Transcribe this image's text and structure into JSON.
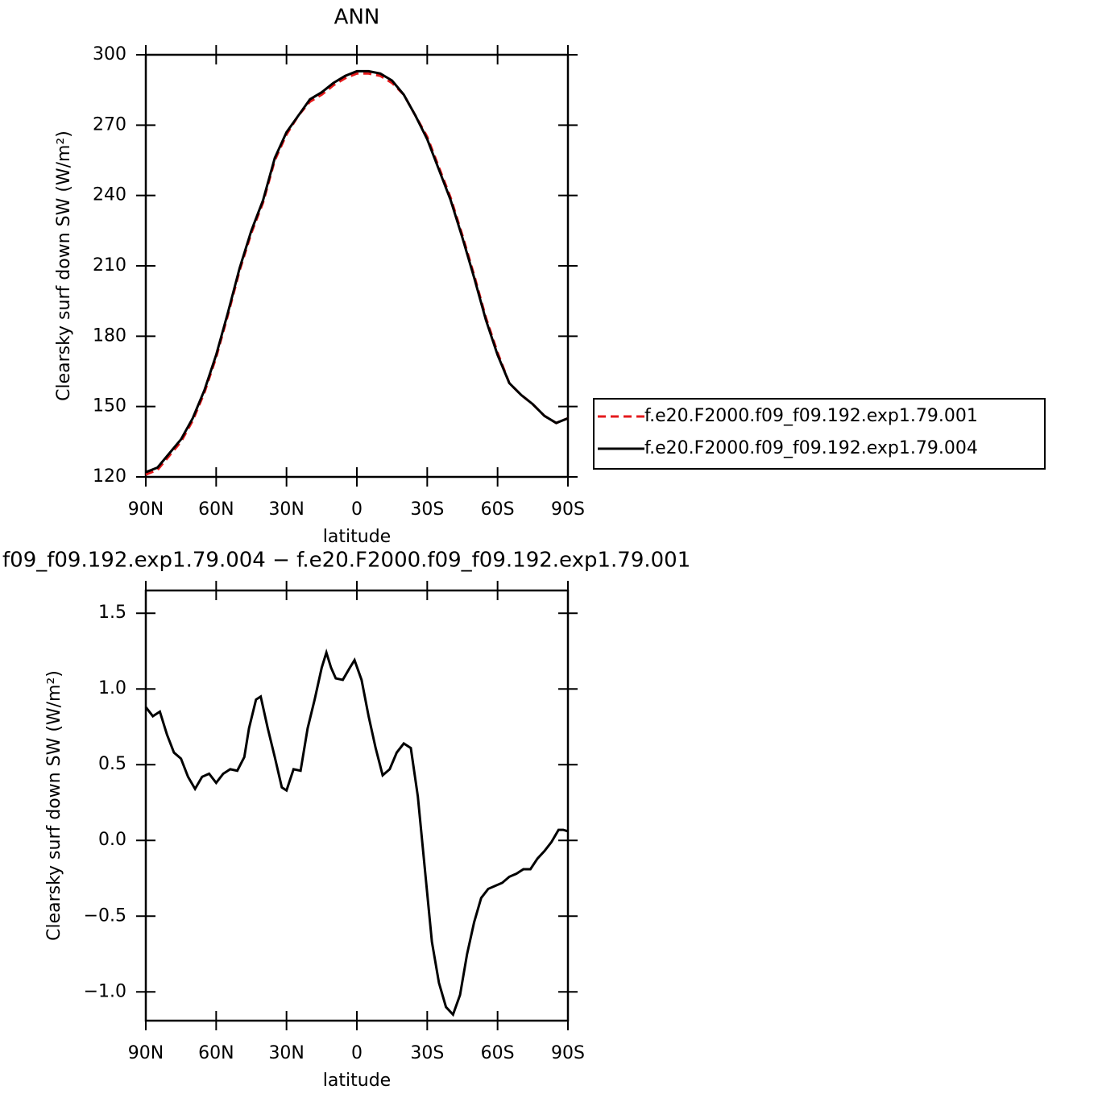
{
  "chart_data": [
    {
      "type": "line",
      "title": "ANN",
      "x_label": "latitude",
      "y_label": "Clearsky surf down SW (W/m²)",
      "x": [
        90,
        85,
        80,
        75,
        70,
        65,
        60,
        55,
        50,
        45,
        40,
        35,
        30,
        25,
        20,
        15,
        10,
        5,
        0,
        -5,
        -10,
        -15,
        -20,
        -25,
        -30,
        -35,
        -40,
        -45,
        -50,
        -55,
        -60,
        -65,
        -70,
        -75,
        -80,
        -85,
        -90
      ],
      "series": [
        {
          "name": "f.e20.F2000.f09_f09.192.exp1.79.001",
          "color": "#e41a1c",
          "linestyle": "dashed",
          "values": [
            121,
            123,
            129,
            135,
            144,
            156,
            171,
            189,
            208,
            224,
            237,
            255,
            266,
            274,
            280,
            283,
            287,
            290,
            292,
            292,
            291,
            288,
            283,
            274,
            265,
            252,
            239,
            223,
            206,
            188,
            173,
            160,
            155,
            151,
            146,
            143,
            145
          ]
        },
        {
          "name": "f.e20.F2000.f09_f09.192.exp1.79.004",
          "color": "#000000",
          "linestyle": "solid",
          "values": [
            122,
            124,
            130,
            136,
            145,
            157,
            172,
            190,
            209,
            225,
            238,
            256,
            267,
            274,
            281,
            284,
            288,
            291,
            293,
            293,
            292,
            289,
            283,
            274,
            264,
            251,
            238,
            222,
            205,
            187,
            172,
            160,
            155,
            151,
            146,
            143,
            145
          ]
        }
      ],
      "xlim": [
        90,
        -90
      ],
      "xticks": [
        {
          "value": 90,
          "label": "90N"
        },
        {
          "value": 60,
          "label": "60N"
        },
        {
          "value": 30,
          "label": "30N"
        },
        0,
        {
          "value": -30,
          "label": "30S"
        },
        {
          "value": -60,
          "label": "60S"
        },
        {
          "value": -90,
          "label": "90S"
        }
      ],
      "ylim": [
        120,
        300
      ],
      "yticks": [
        120,
        150,
        180,
        210,
        240,
        270,
        300
      ],
      "grid": false,
      "legend": "outside-right"
    },
    {
      "type": "line",
      "title": "f09_f09.192.exp1.79.004 − f.e20.F2000.f09_f09.192.exp1.79.001",
      "x_label": "latitude",
      "y_label": "Clearsky surf down SW (W/m²)",
      "x": [
        90,
        87,
        84,
        81,
        78,
        75,
        72,
        69,
        66,
        63,
        60,
        57,
        54,
        51,
        48,
        46,
        43,
        41,
        38,
        35,
        32,
        30,
        27,
        24,
        21,
        18,
        15,
        13,
        11,
        9,
        6,
        3,
        1,
        -2,
        -5,
        -8,
        -11,
        -14,
        -17,
        -20,
        -23,
        -26,
        -29,
        -32,
        -35,
        -38,
        -41,
        -44,
        -47,
        -50,
        -53,
        -56,
        -59,
        -62,
        -65,
        -68,
        -71,
        -74,
        -77,
        -80,
        -83,
        -86,
        -88,
        -90
      ],
      "color": "#000000",
      "values": [
        0.88,
        0.82,
        0.85,
        0.7,
        0.58,
        0.54,
        0.42,
        0.34,
        0.42,
        0.44,
        0.38,
        0.44,
        0.47,
        0.46,
        0.55,
        0.74,
        0.93,
        0.95,
        0.74,
        0.55,
        0.35,
        0.33,
        0.47,
        0.46,
        0.74,
        0.93,
        1.14,
        1.24,
        1.14,
        1.07,
        1.06,
        1.14,
        1.19,
        1.06,
        0.82,
        0.61,
        0.43,
        0.47,
        0.58,
        0.64,
        0.61,
        0.29,
        -0.19,
        -0.67,
        -0.94,
        -1.1,
        -1.15,
        -1.02,
        -0.75,
        -0.54,
        -0.38,
        -0.32,
        -0.3,
        -0.28,
        -0.24,
        -0.22,
        -0.19,
        -0.19,
        -0.12,
        -0.07,
        -0.01,
        0.07,
        0.07,
        0.06
      ],
      "xlim": [
        90,
        -90
      ],
      "xticks": [
        {
          "value": 90,
          "label": "90N"
        },
        {
          "value": 60,
          "label": "60N"
        },
        {
          "value": 30,
          "label": "30N"
        },
        0,
        {
          "value": -30,
          "label": "30S"
        },
        {
          "value": -60,
          "label": "60S"
        },
        {
          "value": -90,
          "label": "90S"
        }
      ],
      "ylim": [
        -1.19,
        1.65
      ],
      "yticks": [
        {
          "value": -1,
          "label": "−1.0"
        },
        {
          "value": -0.5,
          "label": "−0.5"
        },
        {
          "value": 0,
          "label": "0.0"
        },
        0.5,
        {
          "value": 1,
          "label": "1.0"
        },
        1.5
      ],
      "grid": false
    }
  ]
}
